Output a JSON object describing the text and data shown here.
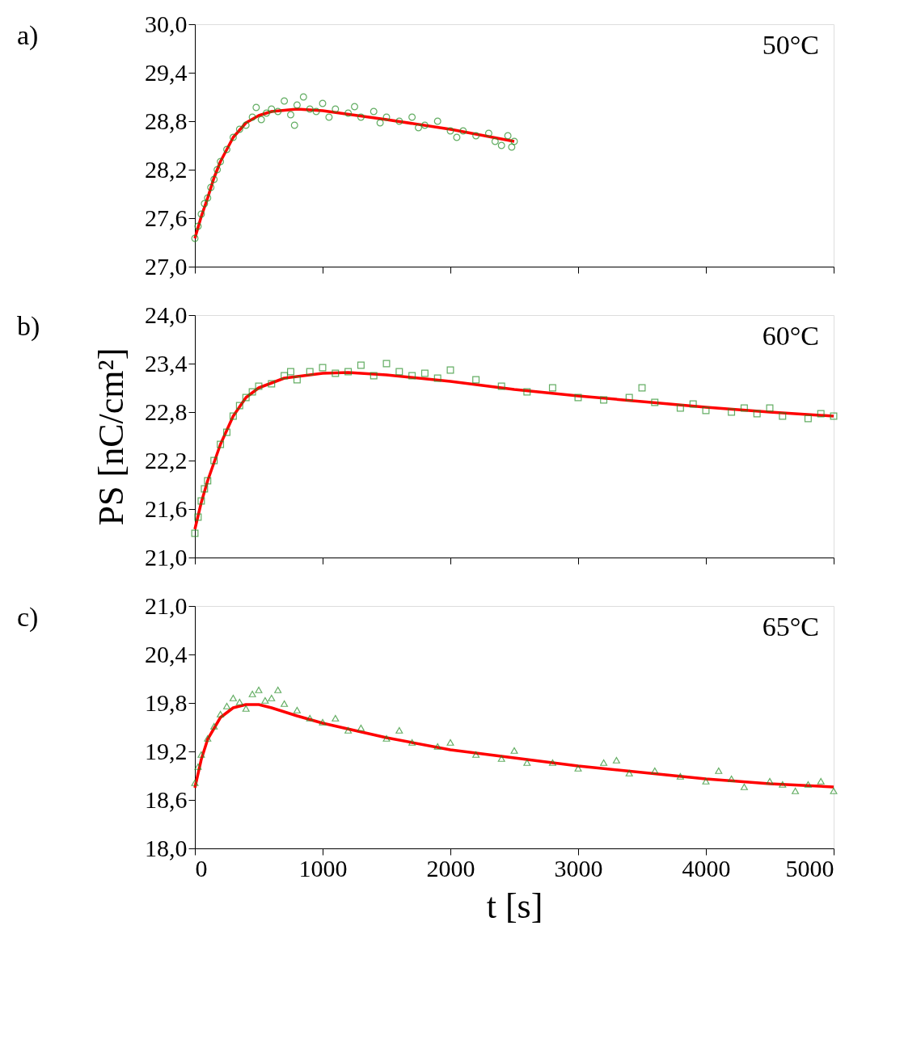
{
  "chart_data": [
    {
      "type": "scatter",
      "annotations": [
        "a)",
        "50°C"
      ],
      "tick_labels": "y",
      "xlim": [
        0,
        5000
      ],
      "xticks": [
        {
          "value": 0,
          "label": null
        },
        {
          "value": 1000,
          "label": null
        },
        {
          "value": 2000,
          "label": null
        },
        {
          "value": 3000,
          "label": null
        },
        {
          "value": 4000,
          "label": null
        },
        {
          "value": 5000,
          "label": null
        }
      ],
      "ylim": [
        27.0,
        30.0
      ],
      "yticks": [
        {
          "value": 27.0,
          "label": "27,0"
        },
        {
          "value": 27.6,
          "label": "27,6"
        },
        {
          "value": 28.2,
          "label": "28,2"
        },
        {
          "value": 28.8,
          "label": "28,8"
        },
        {
          "value": 29.4,
          "label": "29,4"
        },
        {
          "value": 30.0,
          "label": "30,0"
        }
      ],
      "series": [
        {
          "color": "#228b22",
          "marker": "circle",
          "x": [
            0,
            25,
            50,
            75,
            100,
            125,
            150,
            175,
            200,
            250,
            300,
            350,
            400,
            450,
            480,
            520,
            560,
            600,
            650,
            700,
            750,
            780,
            800,
            850,
            900,
            950,
            1000,
            1050,
            1100,
            1200,
            1250,
            1300,
            1400,
            1450,
            1500,
            1600,
            1700,
            1750,
            1800,
            1900,
            2000,
            2050,
            2100,
            2200,
            2300,
            2350,
            2400,
            2450,
            2480,
            2500
          ],
          "values": [
            27.35,
            27.5,
            27.65,
            27.78,
            27.85,
            27.98,
            28.08,
            28.2,
            28.3,
            28.45,
            28.6,
            28.7,
            28.75,
            28.85,
            28.97,
            28.82,
            28.9,
            28.95,
            28.92,
            29.05,
            28.88,
            28.75,
            29.0,
            29.1,
            28.95,
            28.92,
            29.02,
            28.85,
            28.95,
            28.9,
            28.98,
            28.85,
            28.92,
            28.78,
            28.85,
            28.8,
            28.85,
            28.72,
            28.75,
            28.8,
            28.68,
            28.6,
            28.68,
            28.62,
            28.65,
            28.55,
            28.5,
            28.62,
            28.48,
            28.55
          ]
        },
        {
          "type": "line",
          "color": "#ff0000",
          "x": [
            0,
            50,
            100,
            150,
            200,
            300,
            400,
            500,
            600,
            800,
            1000,
            1500,
            2000,
            2500
          ],
          "values": [
            27.35,
            27.62,
            27.85,
            28.1,
            28.3,
            28.6,
            28.78,
            28.87,
            28.92,
            28.95,
            28.93,
            28.82,
            28.7,
            28.55
          ]
        }
      ]
    },
    {
      "type": "scatter",
      "annotations": [
        "b)",
        "60°C"
      ],
      "tick_labels": "y",
      "ylabel": "PS [nC/cm²]",
      "xlim": [
        0,
        5000
      ],
      "xticks": [
        {
          "value": 0,
          "label": null
        },
        {
          "value": 1000,
          "label": null
        },
        {
          "value": 2000,
          "label": null
        },
        {
          "value": 3000,
          "label": null
        },
        {
          "value": 4000,
          "label": null
        },
        {
          "value": 5000,
          "label": null
        }
      ],
      "ylim": [
        21.0,
        24.0
      ],
      "yticks": [
        {
          "value": 21.0,
          "label": "21,0"
        },
        {
          "value": 21.6,
          "label": "21,6"
        },
        {
          "value": 22.2,
          "label": "22,2"
        },
        {
          "value": 22.8,
          "label": "22,8"
        },
        {
          "value": 23.4,
          "label": "23,4"
        },
        {
          "value": 24.0,
          "label": "24,0"
        }
      ],
      "series": [
        {
          "color": "#228b22",
          "marker": "square",
          "x": [
            0,
            25,
            50,
            75,
            100,
            150,
            200,
            250,
            300,
            350,
            400,
            450,
            500,
            600,
            700,
            750,
            800,
            900,
            1000,
            1100,
            1200,
            1300,
            1400,
            1500,
            1600,
            1700,
            1800,
            1900,
            2000,
            2200,
            2400,
            2600,
            2800,
            3000,
            3200,
            3400,
            3500,
            3600,
            3800,
            3900,
            4000,
            4200,
            4300,
            4400,
            4500,
            4600,
            4800,
            4900,
            5000
          ],
          "values": [
            21.3,
            21.5,
            21.7,
            21.85,
            21.95,
            22.2,
            22.4,
            22.55,
            22.75,
            22.88,
            22.98,
            23.05,
            23.12,
            23.15,
            23.25,
            23.3,
            23.2,
            23.3,
            23.35,
            23.28,
            23.3,
            23.38,
            23.25,
            23.4,
            23.3,
            23.25,
            23.28,
            23.22,
            23.32,
            23.2,
            23.12,
            23.05,
            23.1,
            22.98,
            22.95,
            22.98,
            23.1,
            22.92,
            22.85,
            22.9,
            22.82,
            22.8,
            22.85,
            22.78,
            22.85,
            22.75,
            22.72,
            22.78,
            22.75
          ]
        },
        {
          "type": "line",
          "color": "#ff0000",
          "x": [
            0,
            50,
            100,
            200,
            300,
            400,
            500,
            700,
            1000,
            1200,
            1500,
            2000,
            2500,
            3000,
            3500,
            4000,
            4500,
            5000
          ],
          "values": [
            21.35,
            21.68,
            21.95,
            22.4,
            22.75,
            22.98,
            23.1,
            23.22,
            23.28,
            23.29,
            23.26,
            23.18,
            23.08,
            23.0,
            22.93,
            22.86,
            22.8,
            22.75
          ]
        }
      ]
    },
    {
      "type": "scatter",
      "annotations": [
        "c)",
        "65°C"
      ],
      "xlabel": "t [s]",
      "xlim": [
        0,
        5000
      ],
      "xticks": [
        0,
        1000,
        2000,
        3000,
        4000,
        5000
      ],
      "ylim": [
        18.0,
        21.0
      ],
      "yticks": [
        {
          "value": 18.0,
          "label": "18,0"
        },
        {
          "value": 18.6,
          "label": "18,6"
        },
        {
          "value": 19.2,
          "label": "19,2"
        },
        {
          "value": 19.8,
          "label": "19,8"
        },
        {
          "value": 20.4,
          "label": "20,4"
        },
        {
          "value": 21.0,
          "label": "21,0"
        }
      ],
      "series": [
        {
          "color": "#228b22",
          "marker": "triangle",
          "x": [
            0,
            25,
            50,
            100,
            150,
            200,
            250,
            300,
            350,
            400,
            450,
            500,
            550,
            600,
            650,
            700,
            800,
            900,
            1000,
            1100,
            1200,
            1300,
            1500,
            1600,
            1700,
            1900,
            2000,
            2200,
            2400,
            2500,
            2600,
            2800,
            3000,
            3200,
            3300,
            3400,
            3600,
            3800,
            4000,
            4100,
            4200,
            4300,
            4500,
            4600,
            4700,
            4800,
            4900,
            5000
          ],
          "values": [
            18.8,
            19.0,
            19.15,
            19.35,
            19.5,
            19.65,
            19.75,
            19.85,
            19.8,
            19.72,
            19.9,
            19.95,
            19.82,
            19.85,
            19.95,
            19.78,
            19.7,
            19.6,
            19.55,
            19.6,
            19.45,
            19.48,
            19.35,
            19.45,
            19.3,
            19.25,
            19.3,
            19.15,
            19.1,
            19.2,
            19.05,
            19.05,
            18.98,
            19.05,
            19.08,
            18.92,
            18.95,
            18.88,
            18.82,
            18.95,
            18.85,
            18.75,
            18.82,
            18.78,
            18.7,
            18.78,
            18.82,
            18.7
          ]
        },
        {
          "type": "line",
          "color": "#ff0000",
          "x": [
            0,
            50,
            100,
            200,
            300,
            400,
            500,
            600,
            800,
            1000,
            1500,
            2000,
            2500,
            3000,
            3500,
            4000,
            4500,
            5000
          ],
          "values": [
            18.75,
            19.1,
            19.35,
            19.62,
            19.74,
            19.78,
            19.78,
            19.74,
            19.64,
            19.55,
            19.37,
            19.22,
            19.12,
            19.02,
            18.94,
            18.86,
            18.8,
            18.76
          ]
        }
      ]
    }
  ]
}
